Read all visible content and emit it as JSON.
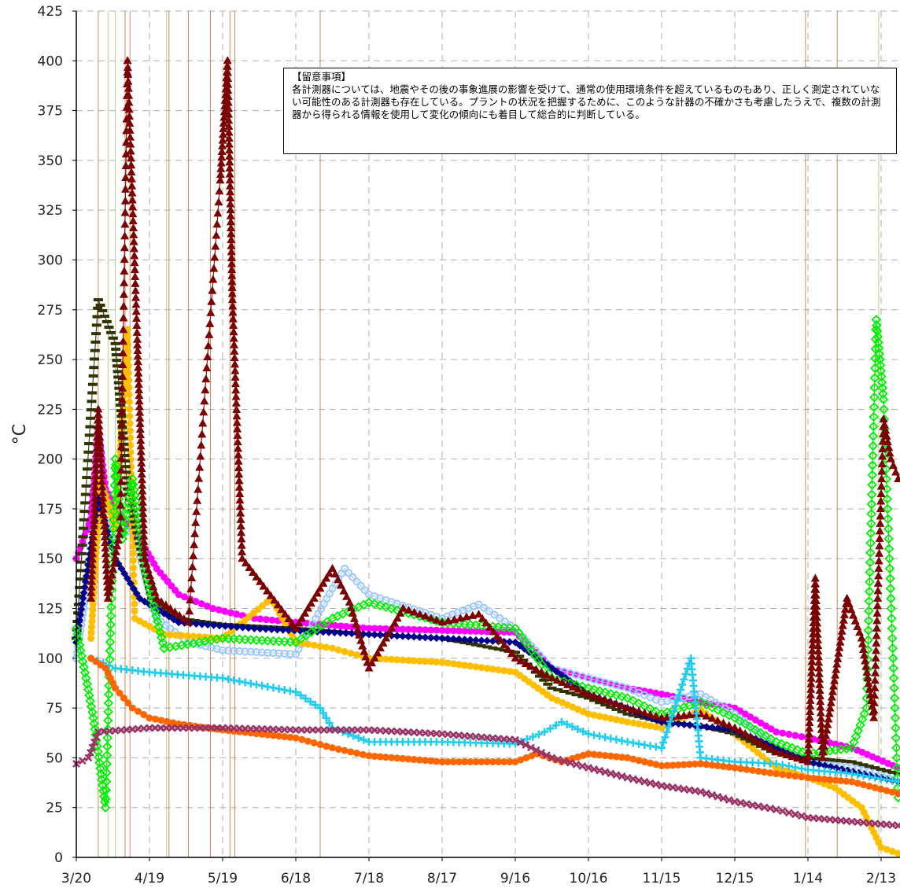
{
  "chart_data": {
    "type": "scatter",
    "ylabel": "°C",
    "ylim": [
      0,
      425
    ],
    "yticks": [
      0,
      25,
      50,
      75,
      100,
      125,
      150,
      175,
      200,
      225,
      250,
      275,
      300,
      325,
      350,
      375,
      400,
      425
    ],
    "xlim": [
      "2011-03-20",
      "2012-02-20"
    ],
    "xticks": [
      {
        "date": "2011-03-20",
        "label": "3/20"
      },
      {
        "date": "2011-04-19",
        "label": "4/19"
      },
      {
        "date": "2011-05-19",
        "label": "5/19"
      },
      {
        "date": "2011-06-18",
        "label": "6/18"
      },
      {
        "date": "2011-07-18",
        "label": "7/18"
      },
      {
        "date": "2011-08-17",
        "label": "8/17"
      },
      {
        "date": "2011-09-16",
        "label": "9/16"
      },
      {
        "date": "2011-10-16",
        "label": "10/16"
      },
      {
        "date": "2011-11-15",
        "label": "11/15"
      },
      {
        "date": "2011-12-15",
        "label": "12/15"
      },
      {
        "date": "2012-01-14",
        "label": "1/14"
      },
      {
        "date": "2012-02-13",
        "label": "2/13"
      }
    ],
    "grid": true,
    "annotation": {
      "title": "【留意事項】",
      "text": "各計測器については、地震やその後の事象進展の影響を受けて、通常の使用環境条件を超えているものもあり、正しく測定されていない可能性のある計測器も存在している。プラントの状況を把握するために、このような計器の不確かさも考慮したうえで、複数の計測器から得られる情報を使用して変化の傾向にも着目して総合的に判断している。"
    },
    "series": [
      {
        "color": "#ff00ff",
        "marker": "circle",
        "points": [
          [
            "2011-03-20",
            150
          ],
          [
            "2011-03-26",
            170
          ],
          [
            "2011-03-29",
            215
          ],
          [
            "2011-04-01",
            185
          ],
          [
            "2011-04-08",
            170
          ],
          [
            "2011-04-15",
            160
          ],
          [
            "2011-04-22",
            145
          ],
          [
            "2011-05-01",
            132
          ],
          [
            "2011-05-15",
            125
          ],
          [
            "2011-06-01",
            120
          ],
          [
            "2011-06-18",
            118
          ],
          [
            "2011-07-18",
            115
          ],
          [
            "2011-08-17",
            114
          ],
          [
            "2011-09-16",
            113
          ],
          [
            "2011-10-01",
            95
          ],
          [
            "2011-10-16",
            90
          ],
          [
            "2011-11-01",
            85
          ],
          [
            "2011-11-15",
            82
          ],
          [
            "2011-12-01",
            78
          ],
          [
            "2011-12-15",
            75
          ],
          [
            "2012-01-01",
            63
          ],
          [
            "2012-01-14",
            60
          ],
          [
            "2012-02-01",
            55
          ],
          [
            "2012-02-20",
            45
          ]
        ]
      },
      {
        "color": "#9ac8ff",
        "marker": "circle-open",
        "points": [
          [
            "2011-03-20",
            100
          ],
          [
            "2011-03-29",
            175
          ],
          [
            "2011-04-05",
            160
          ],
          [
            "2011-04-12",
            165
          ],
          [
            "2011-04-22",
            120
          ],
          [
            "2011-05-05",
            108
          ],
          [
            "2011-05-19",
            104
          ],
          [
            "2011-06-18",
            102
          ],
          [
            "2011-07-03",
            135
          ],
          [
            "2011-07-08",
            145
          ],
          [
            "2011-07-18",
            132
          ],
          [
            "2011-08-17",
            120
          ],
          [
            "2011-09-01",
            127
          ],
          [
            "2011-09-16",
            115
          ],
          [
            "2011-10-01",
            95
          ],
          [
            "2011-10-16",
            90
          ],
          [
            "2011-11-01",
            85
          ],
          [
            "2011-11-15",
            78
          ],
          [
            "2011-12-01",
            82
          ],
          [
            "2011-12-15",
            72
          ],
          [
            "2012-01-01",
            55
          ],
          [
            "2012-01-14",
            48
          ],
          [
            "2012-02-01",
            45
          ],
          [
            "2012-02-20",
            40
          ]
        ]
      },
      {
        "color": "#ffbf00",
        "marker": "circle",
        "points": [
          [
            "2011-03-26",
            110
          ],
          [
            "2011-03-30",
            190
          ],
          [
            "2011-04-05",
            165
          ],
          [
            "2011-04-10",
            265
          ],
          [
            "2011-04-13",
            120
          ],
          [
            "2011-04-25",
            112
          ],
          [
            "2011-05-19",
            110
          ],
          [
            "2011-06-08",
            130
          ],
          [
            "2011-06-18",
            108
          ],
          [
            "2011-07-03",
            105
          ],
          [
            "2011-07-18",
            100
          ],
          [
            "2011-08-17",
            98
          ],
          [
            "2011-09-16",
            93
          ],
          [
            "2011-10-01",
            80
          ],
          [
            "2011-10-16",
            72
          ],
          [
            "2011-11-01",
            68
          ],
          [
            "2011-11-15",
            65
          ],
          [
            "2011-12-01",
            74
          ],
          [
            "2011-12-15",
            62
          ],
          [
            "2012-01-01",
            45
          ],
          [
            "2012-01-14",
            40
          ],
          [
            "2012-01-25",
            35
          ],
          [
            "2012-02-05",
            25
          ],
          [
            "2012-02-13",
            5
          ],
          [
            "2012-02-20",
            2
          ]
        ]
      },
      {
        "color": "#333300",
        "marker": "dash",
        "points": [
          [
            "2011-03-20",
            110
          ],
          [
            "2011-03-29",
            280
          ],
          [
            "2011-04-05",
            258
          ],
          [
            "2011-04-10",
            185
          ],
          [
            "2011-04-20",
            130
          ],
          [
            "2011-05-01",
            120
          ],
          [
            "2011-05-19",
            117
          ],
          [
            "2011-06-18",
            115
          ],
          [
            "2011-07-18",
            112
          ],
          [
            "2011-08-17",
            110
          ],
          [
            "2011-09-16",
            103
          ],
          [
            "2011-10-01",
            85
          ],
          [
            "2011-10-16",
            80
          ],
          [
            "2011-11-01",
            72
          ],
          [
            "2011-11-15",
            68
          ],
          [
            "2011-12-01",
            66
          ],
          [
            "2011-12-15",
            62
          ],
          [
            "2012-01-01",
            52
          ],
          [
            "2012-01-14",
            50
          ],
          [
            "2012-02-01",
            48
          ],
          [
            "2012-02-20",
            42
          ]
        ]
      },
      {
        "color": "#00008b",
        "marker": "diamond",
        "points": [
          [
            "2011-03-20",
            108
          ],
          [
            "2011-03-29",
            180
          ],
          [
            "2011-04-05",
            150
          ],
          [
            "2011-04-15",
            130
          ],
          [
            "2011-05-01",
            118
          ],
          [
            "2011-06-01",
            115
          ],
          [
            "2011-07-18",
            112
          ],
          [
            "2011-08-17",
            110
          ],
          [
            "2011-09-16",
            108
          ],
          [
            "2011-10-16",
            82
          ],
          [
            "2011-11-15",
            68
          ],
          [
            "2011-12-15",
            64
          ],
          [
            "2012-01-14",
            48
          ],
          [
            "2012-02-20",
            38
          ]
        ]
      },
      {
        "color": "#00ee00",
        "marker": "diamond-open",
        "points": [
          [
            "2011-03-20",
            115
          ],
          [
            "2011-03-24",
            90
          ],
          [
            "2011-03-27",
            70
          ],
          [
            "2011-04-01",
            25
          ],
          [
            "2011-04-05",
            200
          ],
          [
            "2011-04-08",
            160
          ],
          [
            "2011-04-12",
            190
          ],
          [
            "2011-04-18",
            140
          ],
          [
            "2011-04-25",
            105
          ],
          [
            "2011-05-19",
            110
          ],
          [
            "2011-06-18",
            108
          ],
          [
            "2011-07-03",
            120
          ],
          [
            "2011-07-18",
            128
          ],
          [
            "2011-08-17",
            118
          ],
          [
            "2011-09-16",
            115
          ],
          [
            "2011-10-01",
            90
          ],
          [
            "2011-10-16",
            85
          ],
          [
            "2011-11-01",
            80
          ],
          [
            "2011-11-15",
            72
          ],
          [
            "2011-12-01",
            78
          ],
          [
            "2011-12-15",
            70
          ],
          [
            "2012-01-01",
            58
          ],
          [
            "2012-01-14",
            52
          ],
          [
            "2012-02-01",
            55
          ],
          [
            "2012-02-07",
            75
          ],
          [
            "2012-02-11",
            270
          ],
          [
            "2012-02-14",
            230
          ],
          [
            "2012-02-20",
            30
          ]
        ]
      },
      {
        "color": "#7b0000",
        "marker": "triangle",
        "points": [
          [
            "2011-03-26",
            130
          ],
          [
            "2011-03-29",
            225
          ],
          [
            "2011-04-02",
            130
          ],
          [
            "2011-04-07",
            165
          ],
          [
            "2011-04-10",
            400
          ],
          [
            "2011-04-14",
            260
          ],
          [
            "2011-04-17",
            150
          ],
          [
            "2011-04-22",
            130
          ],
          [
            "2011-05-05",
            118
          ],
          [
            "2011-05-18",
            340
          ],
          [
            "2011-05-21",
            400
          ],
          [
            "2011-05-23",
            280
          ],
          [
            "2011-05-27",
            150
          ],
          [
            "2011-06-18",
            115
          ],
          [
            "2011-07-03",
            145
          ],
          [
            "2011-07-10",
            128
          ],
          [
            "2011-07-18",
            95
          ],
          [
            "2011-07-25",
            110
          ],
          [
            "2011-08-01",
            125
          ],
          [
            "2011-08-17",
            118
          ],
          [
            "2011-09-01",
            122
          ],
          [
            "2011-09-16",
            100
          ],
          [
            "2011-10-01",
            90
          ],
          [
            "2011-10-16",
            82
          ],
          [
            "2011-11-01",
            75
          ],
          [
            "2011-11-15",
            70
          ],
          [
            "2011-12-01",
            72
          ],
          [
            "2011-12-15",
            65
          ],
          [
            "2012-01-01",
            53
          ],
          [
            "2012-01-14",
            48
          ],
          [
            "2012-01-17",
            140
          ],
          [
            "2012-01-20",
            50
          ],
          [
            "2012-01-30",
            130
          ],
          [
            "2012-02-05",
            110
          ],
          [
            "2012-02-10",
            70
          ],
          [
            "2012-02-14",
            220
          ],
          [
            "2012-02-17",
            200
          ],
          [
            "2012-02-20",
            190
          ]
        ]
      },
      {
        "color": "#22ccee",
        "marker": "plus",
        "points": [
          [
            "2011-03-26",
            100
          ],
          [
            "2011-04-05",
            95
          ],
          [
            "2011-04-19",
            93
          ],
          [
            "2011-05-19",
            90
          ],
          [
            "2011-06-18",
            83
          ],
          [
            "2011-06-28",
            75
          ],
          [
            "2011-07-03",
            65
          ],
          [
            "2011-07-18",
            58
          ],
          [
            "2011-08-17",
            58
          ],
          [
            "2011-09-16",
            57
          ],
          [
            "2011-09-28",
            63
          ],
          [
            "2011-10-05",
            68
          ],
          [
            "2011-10-16",
            62
          ],
          [
            "2011-11-01",
            58
          ],
          [
            "2011-11-15",
            55
          ],
          [
            "2011-11-27",
            100
          ],
          [
            "2011-12-01",
            50
          ],
          [
            "2011-12-15",
            48
          ],
          [
            "2012-01-01",
            47
          ],
          [
            "2012-01-14",
            44
          ],
          [
            "2012-02-01",
            42
          ],
          [
            "2012-02-20",
            38
          ]
        ]
      },
      {
        "color": "#ff6600",
        "marker": "circle",
        "points": [
          [
            "2011-03-26",
            100
          ],
          [
            "2011-04-01",
            95
          ],
          [
            "2011-04-05",
            85
          ],
          [
            "2011-04-12",
            75
          ],
          [
            "2011-04-19",
            70
          ],
          [
            "2011-05-01",
            67
          ],
          [
            "2011-05-19",
            64
          ],
          [
            "2011-06-18",
            60
          ],
          [
            "2011-07-03",
            55
          ],
          [
            "2011-07-18",
            51
          ],
          [
            "2011-08-17",
            48
          ],
          [
            "2011-09-16",
            48
          ],
          [
            "2011-09-25",
            52
          ],
          [
            "2011-10-05",
            48
          ],
          [
            "2011-10-16",
            52
          ],
          [
            "2011-11-01",
            50
          ],
          [
            "2011-11-15",
            46
          ],
          [
            "2011-12-01",
            47
          ],
          [
            "2011-12-15",
            45
          ],
          [
            "2012-01-01",
            42
          ],
          [
            "2012-01-14",
            40
          ],
          [
            "2012-02-01",
            38
          ],
          [
            "2012-02-20",
            32
          ]
        ]
      },
      {
        "color": "#993366",
        "marker": "x",
        "points": [
          [
            "2011-03-20",
            47
          ],
          [
            "2011-03-25",
            50
          ],
          [
            "2011-03-29",
            63
          ],
          [
            "2011-04-19",
            65
          ],
          [
            "2011-05-19",
            65
          ],
          [
            "2011-06-18",
            64
          ],
          [
            "2011-07-18",
            64
          ],
          [
            "2011-08-17",
            62
          ],
          [
            "2011-09-16",
            59
          ],
          [
            "2011-10-01",
            50
          ],
          [
            "2011-10-16",
            45
          ],
          [
            "2011-11-01",
            40
          ],
          [
            "2011-11-15",
            36
          ],
          [
            "2011-12-01",
            33
          ],
          [
            "2011-12-15",
            28
          ],
          [
            "2012-01-01",
            24
          ],
          [
            "2012-01-14",
            20
          ],
          [
            "2012-02-01",
            18
          ],
          [
            "2012-02-20",
            16
          ]
        ]
      }
    ],
    "spikes": [
      {
        "color": "#cc6633",
        "dates": [
          "2011-03-29",
          "2011-04-09",
          "2011-04-11",
          "2011-04-27",
          "2011-05-05",
          "2011-05-14",
          "2011-05-22",
          "2011-05-24",
          "2011-06-28",
          "2012-01-13",
          "2012-01-26"
        ]
      },
      {
        "color": "#99cc66",
        "dates": [
          "2011-04-02",
          "2011-04-05",
          "2011-04-26",
          "2012-02-12"
        ]
      }
    ]
  }
}
